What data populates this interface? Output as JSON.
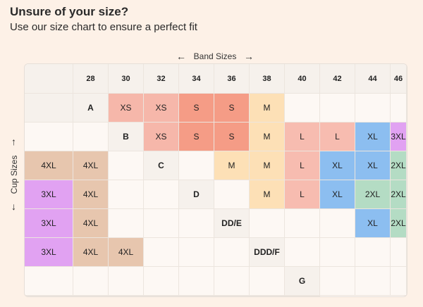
{
  "title": "Unsure of your size?",
  "subtitle": "Use our size chart to ensure a perfect fit",
  "band_label": "Band Sizes",
  "cup_label": "Cup Sizes",
  "arrows": {
    "left": "←",
    "right": "→",
    "up": "↑",
    "down": "↓"
  },
  "band_sizes": [
    "28",
    "30",
    "32",
    "34",
    "36",
    "38",
    "40",
    "42",
    "44",
    "46"
  ],
  "cup_sizes": [
    "A",
    "B",
    "C",
    "D",
    "DD/E",
    "DDD/F",
    "G"
  ],
  "sizes": [
    [
      "XS",
      "XS",
      "S",
      "S",
      "M",
      "",
      "",
      "",
      "",
      ""
    ],
    [
      "XS",
      "S",
      "S",
      "M",
      "L",
      "L",
      "XL",
      "3XL",
      "4XL",
      "4XL"
    ],
    [
      "",
      "M",
      "M",
      "L",
      "XL",
      "XL",
      "2XL",
      "3XL",
      "4XL",
      ""
    ],
    [
      "",
      "M",
      "L",
      "XL",
      "2XL",
      "2XL",
      "3XL",
      "4XL",
      "",
      ""
    ],
    [
      "",
      "",
      "",
      "XL",
      "2XL",
      "3XL",
      "4XL",
      "4XL",
      "",
      ""
    ],
    [
      "",
      "",
      "",
      "",
      "",
      "",
      "",
      "",
      "",
      ""
    ],
    [
      "",
      "",
      "",
      "",
      "",
      "",
      "",
      "",
      "",
      ""
    ]
  ],
  "size_colors": {
    "XS": "#f6b7aa",
    "S": "#f59c86",
    "M": "#fde0b6",
    "L": "#f7bcb0",
    "XL": "#8cbef0",
    "2XL": "#b4dcc4",
    "3XL": "#e1a2f2",
    "4XL": "#e7c6ae"
  }
}
